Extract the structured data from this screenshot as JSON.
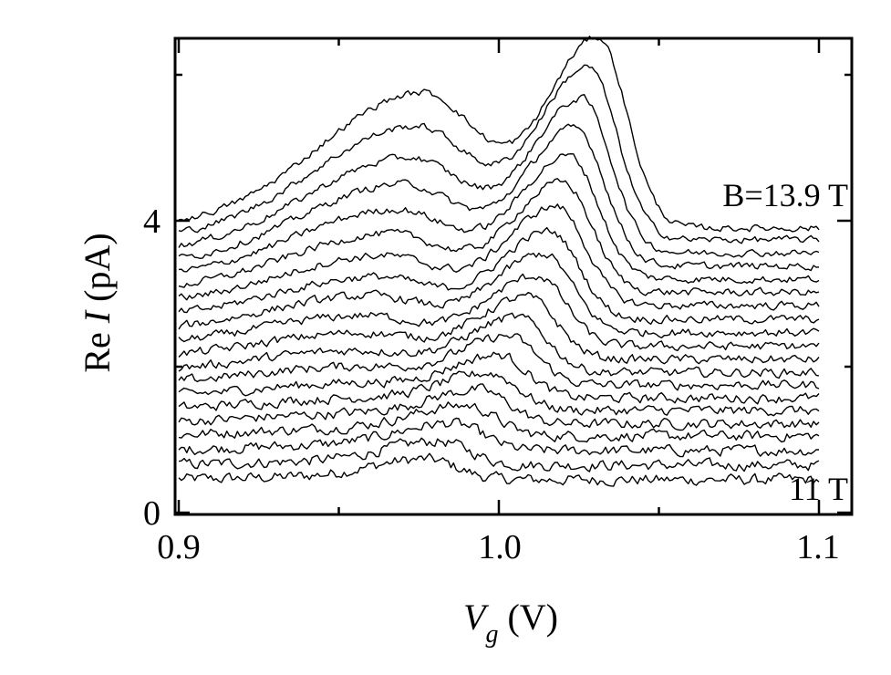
{
  "chart_data": {
    "type": "line",
    "title": "",
    "xlabel": {
      "symbol": "V",
      "sub": "g",
      "unit": " (V)"
    },
    "ylabel": {
      "prefix": "Re ",
      "symbol": "I",
      "unit": " (pA)"
    },
    "xlim": [
      0.9,
      1.1
    ],
    "ylim": [
      0,
      6.6
    ],
    "x_ticks": [
      0.9,
      1.0,
      1.1
    ],
    "x_tick_labels": [
      "0.9",
      "1.0",
      "1.1"
    ],
    "y_ticks": [
      0,
      4
    ],
    "y_tick_labels": [
      "0",
      "4"
    ],
    "grid": false,
    "legend": "none",
    "line_color": "#000000",
    "annotations": [
      {
        "text": "B=13.9 T",
        "near": "top trace, right side"
      },
      {
        "text": "11 T",
        "near": "bottom trace, right side"
      }
    ],
    "series_note": "20 stacked traces of Re I versus V_g, magnetic field increasing from 11 T (bottom) to 13.9 T (top); each trace is offset vertically.",
    "series": [
      {
        "baseline": 0.45,
        "peaks": [
          [
            0.978,
            0.25,
            0.01
          ],
          [
            0.96,
            0.05,
            0.02
          ]
        ]
      },
      {
        "baseline": 0.65,
        "peaks": [
          [
            0.982,
            0.3,
            0.01
          ],
          [
            0.958,
            0.06,
            0.02
          ]
        ]
      },
      {
        "baseline": 0.85,
        "peaks": [
          [
            0.986,
            0.35,
            0.01
          ],
          [
            0.957,
            0.08,
            0.02
          ]
        ]
      },
      {
        "baseline": 1.05,
        "peaks": [
          [
            0.99,
            0.4,
            0.01
          ],
          [
            0.956,
            0.1,
            0.02
          ]
        ]
      },
      {
        "baseline": 1.22,
        "peaks": [
          [
            0.994,
            0.45,
            0.01
          ],
          [
            0.955,
            0.13,
            0.02
          ]
        ]
      },
      {
        "baseline": 1.4,
        "peaks": [
          [
            0.997,
            0.5,
            0.01
          ],
          [
            0.955,
            0.16,
            0.02
          ]
        ]
      },
      {
        "baseline": 1.57,
        "peaks": [
          [
            1.0,
            0.58,
            0.01
          ],
          [
            0.955,
            0.2,
            0.02
          ]
        ]
      },
      {
        "baseline": 1.75,
        "peaks": [
          [
            1.003,
            0.66,
            0.01
          ],
          [
            0.955,
            0.25,
            0.02
          ]
        ]
      },
      {
        "baseline": 1.92,
        "peaks": [
          [
            1.006,
            0.75,
            0.01
          ],
          [
            0.956,
            0.3,
            0.02
          ]
        ]
      },
      {
        "baseline": 2.1,
        "peaks": [
          [
            1.009,
            0.85,
            0.01
          ],
          [
            0.957,
            0.36,
            0.02
          ]
        ]
      },
      {
        "baseline": 2.28,
        "peaks": [
          [
            1.012,
            0.96,
            0.01
          ],
          [
            0.958,
            0.42,
            0.02
          ]
        ]
      },
      {
        "baseline": 2.47,
        "peaks": [
          [
            1.014,
            1.07,
            0.01
          ],
          [
            0.96,
            0.5,
            0.02
          ]
        ]
      },
      {
        "baseline": 2.65,
        "peaks": [
          [
            1.016,
            1.2,
            0.01
          ],
          [
            0.962,
            0.58,
            0.02
          ]
        ]
      },
      {
        "baseline": 2.84,
        "peaks": [
          [
            1.018,
            1.35,
            0.01
          ],
          [
            0.964,
            0.68,
            0.02
          ]
        ]
      },
      {
        "baseline": 3.02,
        "peaks": [
          [
            1.02,
            1.5,
            0.01
          ],
          [
            0.966,
            0.8,
            0.02
          ]
        ]
      },
      {
        "baseline": 3.2,
        "peaks": [
          [
            1.022,
            1.68,
            0.01
          ],
          [
            0.968,
            0.95,
            0.02
          ]
        ]
      },
      {
        "baseline": 3.38,
        "peaks": [
          [
            1.024,
            1.88,
            0.01
          ],
          [
            0.97,
            1.12,
            0.02
          ]
        ]
      },
      {
        "baseline": 3.56,
        "peaks": [
          [
            1.026,
            2.1,
            0.01
          ],
          [
            0.972,
            1.3,
            0.02
          ]
        ]
      },
      {
        "baseline": 3.74,
        "peaks": [
          [
            1.028,
            2.35,
            0.01
          ],
          [
            0.974,
            1.55,
            0.02
          ]
        ]
      },
      {
        "baseline": 3.9,
        "peaks": [
          [
            1.031,
            2.6,
            0.01
          ],
          [
            0.976,
            1.85,
            0.02
          ]
        ]
      }
    ]
  }
}
